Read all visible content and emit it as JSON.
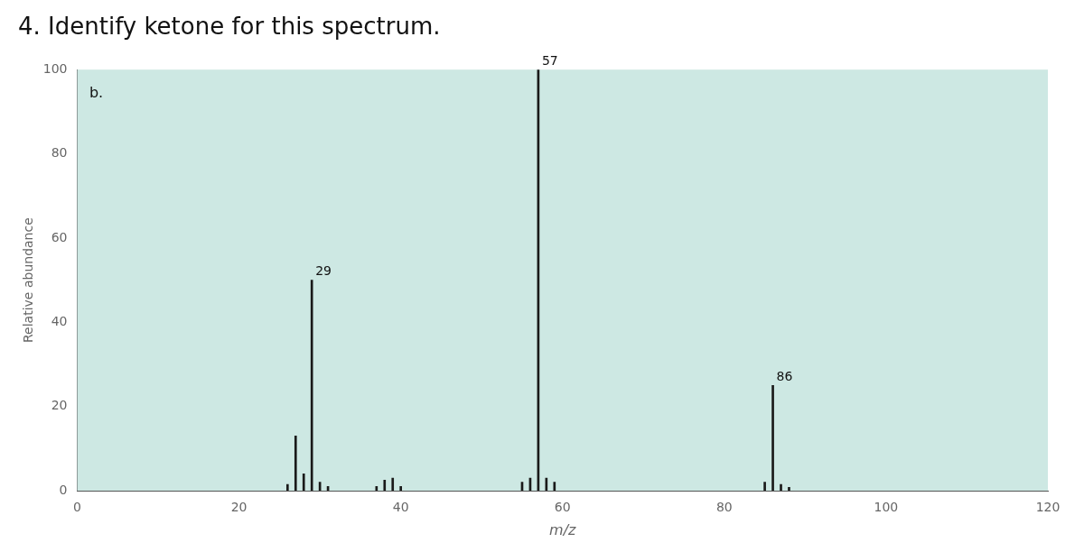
{
  "chart_data": {
    "type": "bar",
    "title": "4. Identify ketone for this spectrum.",
    "x": [
      26,
      27,
      28,
      29,
      30,
      31,
      37,
      38,
      39,
      40,
      55,
      56,
      57,
      58,
      59,
      85,
      86,
      87,
      88
    ],
    "values": [
      1.5,
      13,
      4,
      50,
      2,
      1,
      1,
      2.5,
      3,
      1,
      2,
      3,
      100,
      3,
      2,
      2,
      25,
      1.5,
      0.8
    ],
    "color": "#1a1a1a",
    "xlabel": "m/z",
    "ylabel": "Relative abundance",
    "xlim": [
      0,
      120
    ],
    "ylim": [
      0,
      100
    ],
    "xticks": [
      0,
      20,
      40,
      60,
      80,
      100,
      120
    ],
    "yticks": [
      0,
      20,
      40,
      60,
      80,
      100
    ],
    "grid": false,
    "annotations": [
      {
        "text": "29",
        "x": 29,
        "y": 50
      },
      {
        "text": "57",
        "x": 57,
        "y": 100
      },
      {
        "text": "86",
        "x": 86,
        "y": 25
      },
      {
        "text": "b.",
        "x": 1.5,
        "y": 96
      }
    ]
  }
}
